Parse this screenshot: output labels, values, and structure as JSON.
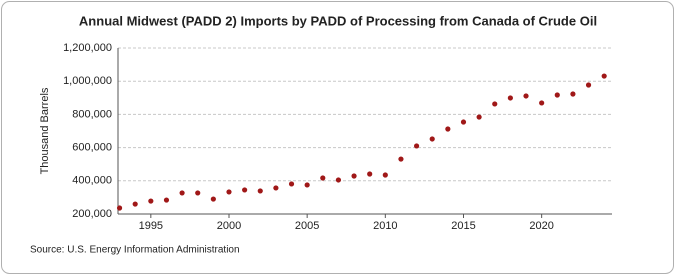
{
  "chart_data": {
    "type": "scatter",
    "title": "Annual Midwest (PADD 2) Imports by PADD of Processing from Canada of Crude Oil",
    "y_label": "Thousand Barrels",
    "source": "Source: U.S. Energy Information Administration",
    "x": [
      1993,
      1994,
      1995,
      1996,
      1997,
      1998,
      1999,
      2000,
      2001,
      2002,
      2003,
      2004,
      2005,
      2006,
      2007,
      2008,
      2009,
      2010,
      2011,
      2012,
      2013,
      2014,
      2015,
      2016,
      2017,
      2018,
      2019,
      2020,
      2021,
      2022,
      2023,
      2024
    ],
    "series": [
      {
        "color": "#a01818",
        "values": [
          236000,
          260000,
          278000,
          284000,
          327000,
          327000,
          290000,
          333000,
          345000,
          339000,
          357000,
          381000,
          375000,
          417000,
          405000,
          429000,
          441000,
          435000,
          531000,
          610000,
          652000,
          712000,
          754000,
          784000,
          863000,
          899000,
          911000,
          869000,
          917000,
          923000,
          977000,
          1031000
        ]
      }
    ],
    "xlim": [
      1992.9,
      2024.5
    ],
    "xticks": [
      1995,
      2000,
      2005,
      2010,
      2015,
      2020
    ],
    "ylim": [
      200000,
      1200000
    ],
    "yticks": [
      {
        "value": 200000,
        "label": "200,000"
      },
      {
        "value": 400000,
        "label": "400,000"
      },
      {
        "value": 600000,
        "label": "600,000"
      },
      {
        "value": 800000,
        "label": "800,000"
      },
      {
        "value": 1000000,
        "label": "1,000,000"
      },
      {
        "value": 1200000,
        "label": "1,200,000"
      }
    ],
    "grid": true
  }
}
